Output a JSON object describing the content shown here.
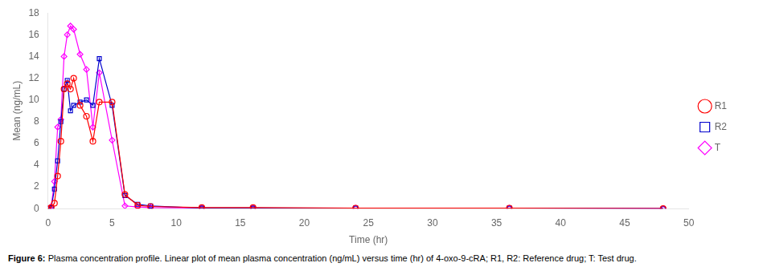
{
  "chart_data": {
    "type": "line",
    "xlabel": "Time (hr)",
    "ylabel": "Mean (ng/mL)",
    "caption_bold": "Figure 6:",
    "caption": "Plasma concentration profile. Linear plot of mean plasma concentration (ng/mL) versus time (hr) of 4-oxo-9-cRA; R1, R2: Reference drug; T: Test drug.",
    "series": [
      {
        "name": "R1",
        "color": "#ff0000",
        "marker": "circle",
        "x": [
          0,
          0.25,
          0.5,
          0.75,
          1.0,
          1.25,
          1.5,
          1.75,
          2.0,
          2.5,
          3.0,
          3.5,
          4.0,
          5.0,
          6.0,
          7.0,
          8.0,
          12.0,
          16.0,
          24.0,
          36.0,
          48.0
        ],
        "values": [
          0.0,
          0.1,
          0.5,
          3.0,
          6.2,
          11.0,
          11.5,
          11.0,
          12.0,
          9.5,
          8.5,
          6.2,
          9.8,
          9.8,
          1.3,
          0.3,
          0.2,
          0.1,
          0.1,
          0.05,
          0.05,
          0.0
        ]
      },
      {
        "name": "R2",
        "color": "#0000cd",
        "marker": "square",
        "x": [
          0,
          0.25,
          0.5,
          0.75,
          1.0,
          1.25,
          1.5,
          1.75,
          2.0,
          2.5,
          3.0,
          3.5,
          4.0,
          5.0,
          6.0,
          7.0,
          8.0,
          12.0,
          16.0,
          24.0,
          36.0,
          48.0
        ],
        "values": [
          0.0,
          0.1,
          1.8,
          4.4,
          8.0,
          11.0,
          11.8,
          9.0,
          9.5,
          9.8,
          10.0,
          9.5,
          13.8,
          9.5,
          1.2,
          0.4,
          0.25,
          0.05,
          0.05,
          0.05,
          0.05,
          0.0
        ]
      },
      {
        "name": "T",
        "color": "#ff00ff",
        "marker": "diamond",
        "x": [
          0,
          0.25,
          0.5,
          0.75,
          1.0,
          1.25,
          1.5,
          1.75,
          2.0,
          2.5,
          3.0,
          3.5,
          4.0,
          5.0,
          6.0,
          7.0,
          8.0,
          12.0,
          16.0,
          24.0,
          36.0,
          48.0
        ],
        "values": [
          0.0,
          0.2,
          2.5,
          7.5,
          8.2,
          14.0,
          16.0,
          16.8,
          16.5,
          14.2,
          12.8,
          7.5,
          12.5,
          6.3,
          0.25,
          0.15,
          0.1,
          0.05,
          0.05,
          0.05,
          0.05,
          0.0
        ]
      }
    ],
    "xlim": [
      0,
      50
    ],
    "ylim": [
      0,
      18
    ],
    "xticks": [
      0,
      5,
      10,
      15,
      20,
      25,
      30,
      35,
      40,
      45,
      50
    ],
    "yticks": [
      0,
      2,
      4,
      6,
      8,
      10,
      12,
      14,
      16,
      18
    ],
    "grid": false,
    "legend": "right"
  }
}
